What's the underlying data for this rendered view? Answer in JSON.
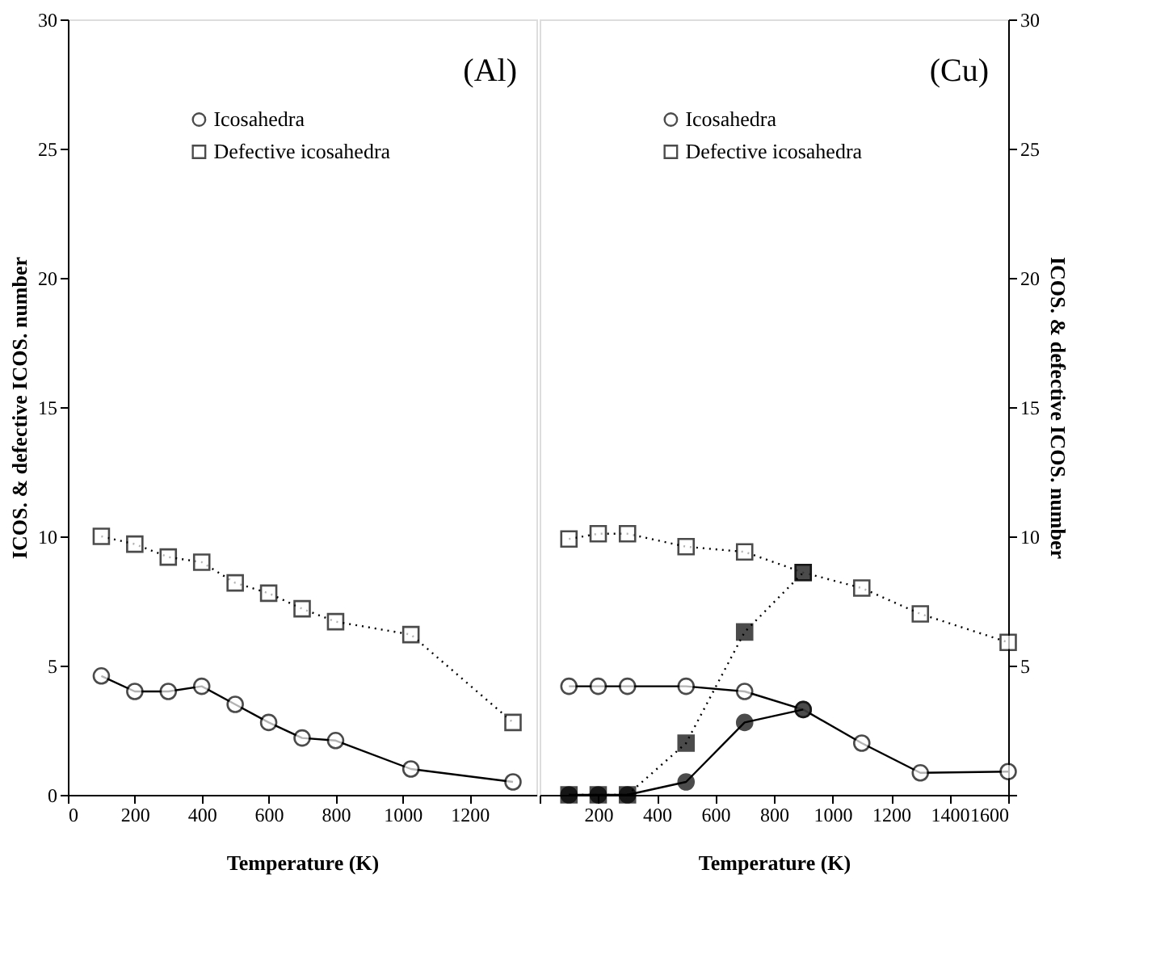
{
  "chart_data": [
    {
      "type": "line",
      "xlabel": "Temperature (K)",
      "ylabel": "ICOS. & defective ICOS. number",
      "annotations": [
        "(Al)"
      ],
      "xlim": [
        0,
        1400
      ],
      "xticks": [
        0,
        200,
        400,
        600,
        800,
        1000,
        1200
      ],
      "ylim": [
        0,
        30
      ],
      "yticks": [
        0,
        5,
        10,
        15,
        20,
        25,
        30
      ],
      "legend": "top left",
      "grid": false,
      "series": [
        {
          "name": "Icosahedra",
          "color": "#000000",
          "marker": "circle",
          "line_style": "solid",
          "x": [
            100,
            200,
            300,
            400,
            500,
            600,
            700,
            800,
            1025,
            1330
          ],
          "values": [
            4.6,
            4.0,
            4.0,
            4.2,
            3.5,
            2.8,
            2.2,
            2.1,
            1.0,
            0.5
          ]
        },
        {
          "name": "Defective icosahedra",
          "color": "#000000",
          "marker": "square",
          "line_style": "dotted",
          "x": [
            100,
            200,
            300,
            400,
            500,
            600,
            700,
            800,
            1025,
            1330
          ],
          "values": [
            10.0,
            9.7,
            9.2,
            9.0,
            8.2,
            7.8,
            7.2,
            6.7,
            6.2,
            2.8
          ]
        }
      ]
    },
    {
      "type": "line",
      "xlabel": "Temperature (K)",
      "y2label": "ICOS. & defective ICOS. number",
      "annotations": [
        "(Cu)"
      ],
      "xlim": [
        0,
        1600
      ],
      "xticks": [
        {
          "value": 0,
          "label": null
        },
        200,
        400,
        600,
        800,
        1000,
        1200,
        1400,
        1600
      ],
      "y2lim": [
        0,
        30
      ],
      "y2ticks": [
        {
          "value": 0,
          "label": null
        },
        5,
        10,
        15,
        20,
        25,
        30
      ],
      "legend": "top left",
      "grid": false,
      "series": [
        {
          "name": "Icosahedra",
          "color": "#000000",
          "marker": "circle",
          "line_style": "solid",
          "axis": "y2",
          "x": [
            100,
            200,
            300,
            500,
            700,
            900,
            1100,
            1300,
            1600
          ],
          "values": [
            4.2,
            4.2,
            4.2,
            4.2,
            4.0,
            3.3,
            2.0,
            0.85,
            0.9
          ]
        },
        {
          "name": "Defective icosahedra",
          "color": "#000000",
          "marker": "square",
          "line_style": "dotted",
          "axis": "y2",
          "x": [
            100,
            200,
            300,
            500,
            700,
            900,
            1100,
            1300,
            1600
          ],
          "values": [
            9.9,
            10.1,
            10.1,
            9.6,
            9.4,
            8.6,
            8.0,
            7.0,
            5.9
          ]
        },
        {
          "color": "#000000",
          "marker": "circle",
          "line_style": "solid",
          "axis": "y2",
          "x": [
            100,
            200,
            300,
            500,
            700,
            900
          ],
          "values": [
            0,
            0,
            0,
            0.5,
            2.8,
            3.3
          ]
        },
        {
          "color": "#000000",
          "marker": "square",
          "line_style": "dotted",
          "axis": "y2",
          "x": [
            100,
            200,
            300,
            500,
            700,
            900
          ],
          "values": [
            0,
            0,
            0,
            2.0,
            6.3,
            8.6
          ]
        }
      ]
    }
  ]
}
